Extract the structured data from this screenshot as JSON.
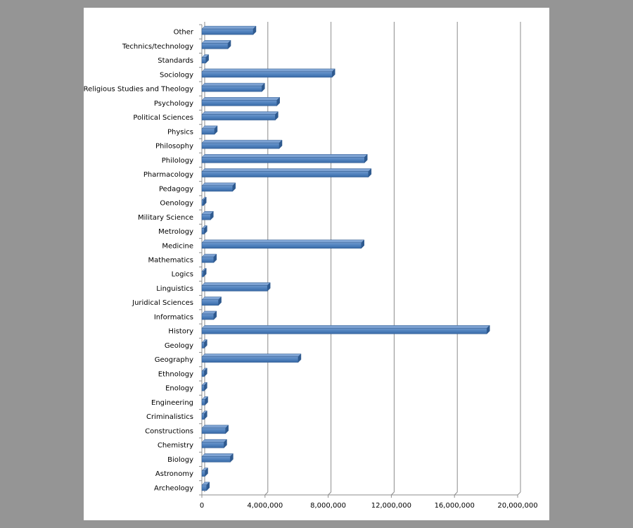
{
  "chart_data": {
    "type": "bar",
    "orientation": "horizontal",
    "title": "",
    "xlabel": "",
    "ylabel": "",
    "xlim": [
      0,
      20000000
    ],
    "grid": true,
    "legend": "none",
    "bar_color": "#4F81BD",
    "ticks": [
      "0",
      "4,000,000",
      "8,000,000",
      "12,000,000",
      "16,000,000",
      "20,000,000"
    ],
    "categories": [
      "Other",
      "Technics/technology",
      "Standards",
      "Sociology",
      "Religious Studies and Theology",
      "Psychology",
      "Political Sciences",
      "Physics",
      "Philosophy",
      "Philology",
      "Pharmacology",
      "Pedagogy",
      "Oenology",
      "Military Science",
      "Metrology",
      "Medicine",
      "Mathematics",
      "Logics",
      "Linguistics",
      "Juridical Sciences",
      "Informatics",
      "History",
      "Geology",
      "Geography",
      "Ethnology",
      "Enology",
      "Engineering",
      "Criminalistics",
      "Constructions",
      "Chemistry",
      "Biology",
      "Astronomy",
      "Archeology"
    ],
    "values": [
      3250000,
      1650000,
      250000,
      8250000,
      3800000,
      4750000,
      4650000,
      800000,
      4900000,
      10300000,
      10550000,
      1950000,
      100000,
      550000,
      150000,
      10100000,
      750000,
      100000,
      4150000,
      1050000,
      750000,
      18050000,
      150000,
      6100000,
      150000,
      150000,
      200000,
      150000,
      1500000,
      1400000,
      1800000,
      200000,
      300000
    ]
  }
}
